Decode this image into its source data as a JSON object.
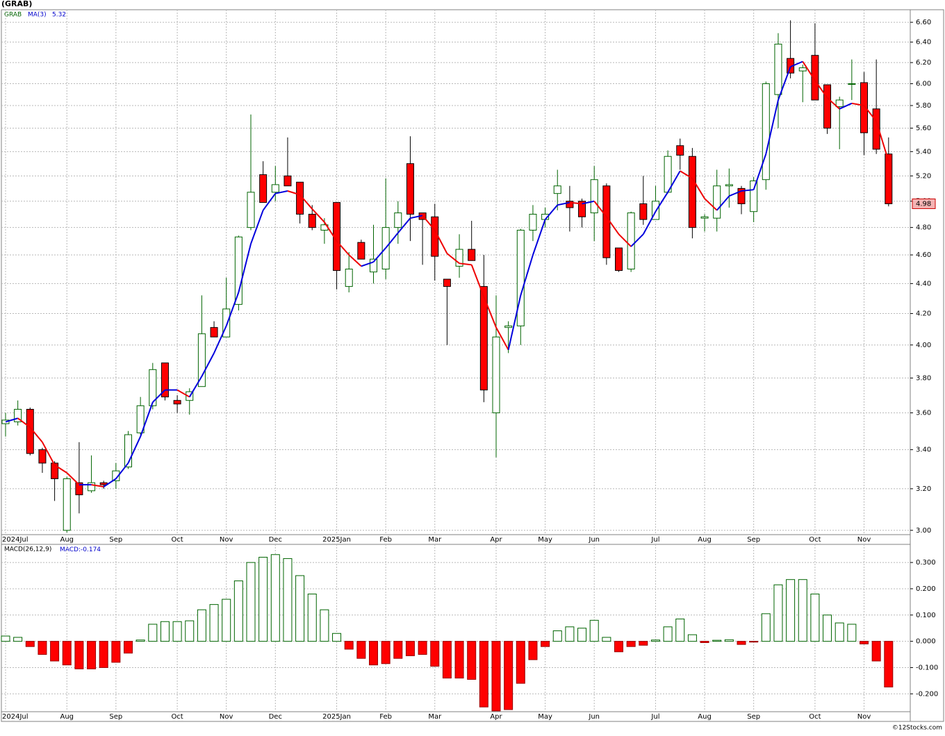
{
  "chart_data": [
    {
      "type": "candlestick",
      "title": "(GRAB)",
      "name": "GRAB",
      "categories": [
        "2024Jul",
        null,
        null,
        null,
        null,
        "Aug",
        null,
        null,
        null,
        "Sep",
        null,
        null,
        null,
        null,
        "Oct",
        null,
        null,
        null,
        "Nov",
        null,
        null,
        null,
        "Dec",
        null,
        null,
        null,
        null,
        "2025Jan",
        null,
        null,
        null,
        "Feb",
        null,
        null,
        null,
        "Mar",
        null,
        null,
        null,
        null,
        "Apr",
        null,
        null,
        null,
        "May",
        null,
        null,
        null,
        "Jun",
        null,
        null,
        null,
        null,
        "Jul",
        null,
        null,
        null,
        "Aug",
        null,
        null,
        null,
        "Sep",
        null,
        null,
        null,
        null,
        "Oct",
        null,
        null,
        null,
        "Nov",
        null,
        null
      ],
      "open": [
        3.54,
        3.55,
        3.62,
        3.4,
        3.33,
        3.0,
        3.23,
        3.19,
        3.23,
        3.24,
        3.31,
        3.49,
        3.64,
        3.89,
        3.67,
        3.67,
        3.75,
        4.11,
        4.05,
        4.26,
        4.8,
        5.21,
        5.07,
        5.2,
        5.15,
        4.9,
        4.78,
        4.99,
        4.38,
        4.69,
        4.48,
        4.5,
        4.8,
        5.3,
        4.91,
        4.88,
        4.43,
        4.52,
        4.64,
        4.38,
        3.6,
        4.11,
        4.12,
        4.78,
        4.86,
        5.06,
        5.0,
        5.0,
        4.91,
        5.12,
        4.65,
        4.5,
        4.98,
        4.86,
        5.07,
        5.45,
        5.36,
        4.87,
        4.87,
        5.12,
        5.1,
        4.92,
        5.17,
        5.9,
        6.24,
        6.12,
        6.27,
        5.99,
        5.79,
        6.0,
        6.01,
        5.77,
        5.38
      ],
      "high": [
        3.6,
        3.67,
        3.63,
        3.41,
        3.34,
        3.26,
        3.44,
        3.37,
        3.24,
        3.33,
        3.5,
        3.69,
        3.89,
        3.89,
        3.7,
        3.74,
        4.32,
        4.15,
        4.44,
        4.74,
        5.72,
        5.32,
        5.28,
        5.52,
        5.15,
        4.97,
        4.87,
        4.99,
        4.62,
        4.71,
        4.82,
        5.18,
        5.0,
        5.53,
        4.91,
        4.98,
        4.43,
        4.75,
        4.85,
        4.6,
        4.32,
        4.15,
        4.79,
        4.97,
        4.95,
        5.25,
        5.12,
        5.02,
        5.28,
        5.14,
        4.65,
        4.92,
        5.2,
        5.12,
        5.41,
        5.51,
        5.43,
        4.9,
        5.25,
        5.26,
        5.12,
        5.19,
        6.02,
        6.49,
        6.62,
        6.18,
        6.59,
        5.99,
        5.88,
        6.23,
        6.11,
        6.23,
        5.52
      ],
      "low": [
        3.47,
        3.53,
        3.37,
        3.28,
        3.14,
        2.99,
        3.08,
        3.18,
        3.2,
        3.2,
        3.3,
        3.48,
        3.62,
        3.67,
        3.6,
        3.59,
        3.75,
        4.05,
        4.05,
        4.22,
        4.78,
        4.99,
        5.0,
        5.12,
        4.83,
        4.78,
        4.68,
        4.36,
        4.34,
        4.57,
        4.4,
        4.43,
        4.68,
        4.7,
        4.53,
        4.42,
        4.0,
        4.44,
        4.56,
        3.66,
        3.36,
        3.95,
        4.0,
        4.7,
        4.8,
        4.93,
        4.77,
        4.8,
        4.7,
        4.53,
        4.48,
        4.48,
        4.82,
        4.86,
        5.06,
        5.25,
        4.72,
        4.77,
        4.77,
        4.95,
        4.9,
        4.84,
        5.09,
        5.6,
        6.05,
        5.83,
        5.85,
        5.55,
        5.42,
        5.85,
        5.37,
        5.38,
        4.96
      ],
      "close": [
        3.56,
        3.62,
        3.38,
        3.33,
        3.25,
        3.25,
        3.17,
        3.23,
        3.22,
        3.29,
        3.48,
        3.64,
        3.85,
        3.69,
        3.65,
        3.72,
        4.07,
        4.05,
        4.23,
        4.73,
        5.07,
        4.99,
        5.13,
        5.12,
        4.9,
        4.8,
        4.82,
        4.49,
        4.5,
        4.57,
        4.57,
        4.8,
        4.91,
        4.9,
        4.86,
        4.59,
        4.38,
        4.64,
        4.56,
        3.73,
        4.05,
        4.12,
        4.78,
        4.9,
        4.9,
        5.12,
        4.95,
        4.88,
        5.17,
        4.58,
        4.49,
        4.91,
        4.86,
        5.0,
        5.36,
        5.37,
        4.8,
        4.88,
        5.12,
        5.13,
        4.98,
        5.16,
        6.0,
        6.38,
        6.1,
        6.15,
        5.85,
        5.6,
        5.85,
        6.0,
        5.56,
        5.42,
        4.98
      ],
      "up_color": "#006400",
      "down_color": "#ff0000",
      "ma": {
        "name": "MA(3)",
        "rise_color": "#0000dd",
        "fall_color": "#ee0000",
        "values": [
          3.55,
          3.57,
          3.52,
          3.44,
          3.32,
          3.28,
          3.22,
          3.22,
          3.21,
          3.25,
          3.33,
          3.47,
          3.66,
          3.73,
          3.73,
          3.69,
          3.81,
          3.95,
          4.12,
          4.34,
          4.68,
          4.93,
          5.06,
          5.08,
          5.05,
          4.94,
          4.84,
          4.7,
          4.6,
          4.52,
          4.55,
          4.65,
          4.76,
          4.87,
          4.89,
          4.78,
          4.61,
          4.54,
          4.53,
          4.31,
          4.11,
          3.97,
          4.32,
          4.6,
          4.86,
          4.97,
          4.99,
          4.98,
          5.0,
          4.88,
          4.75,
          4.66,
          4.75,
          4.92,
          5.07,
          5.24,
          5.18,
          5.02,
          4.93,
          5.04,
          5.08,
          5.09,
          5.38,
          5.85,
          6.16,
          6.21,
          6.03,
          5.87,
          5.77,
          5.82,
          5.8,
          5.66,
          5.32
        ]
      },
      "log_scale": true,
      "grid": true,
      "ylim": [
        2.98,
        6.73
      ],
      "yticks": [
        {
          "value": 3.0,
          "label": "3.00"
        },
        {
          "value": 3.2,
          "label": "3.20"
        },
        {
          "value": 3.4,
          "label": "3.40"
        },
        {
          "value": 3.6,
          "label": "3.60"
        },
        {
          "value": 3.8,
          "label": "3.80"
        },
        {
          "value": 4.0,
          "label": "4.00"
        },
        {
          "value": 4.2,
          "label": "4.20"
        },
        {
          "value": 4.4,
          "label": "4.40"
        },
        {
          "value": 4.6,
          "label": "4.60"
        },
        {
          "value": 4.8,
          "label": "4.80"
        },
        {
          "value": 5.0,
          "label": "5.00"
        },
        {
          "value": 5.2,
          "label": "5.20"
        },
        {
          "value": 5.4,
          "label": "5.40"
        },
        {
          "value": 5.6,
          "label": "5.60"
        },
        {
          "value": 5.8,
          "label": "5.80"
        },
        {
          "value": 6.0,
          "label": "6.00"
        },
        {
          "value": 6.2,
          "label": "6.20"
        },
        {
          "value": 6.4,
          "label": "6.40"
        },
        {
          "value": 6.6,
          "label": "6.60"
        }
      ]
    },
    {
      "type": "bar",
      "name": "MACD(26,12,9)",
      "value_name": "MACD:",
      "categories": [
        "2024Jul",
        null,
        null,
        null,
        null,
        "Aug",
        null,
        null,
        null,
        "Sep",
        null,
        null,
        null,
        null,
        "Oct",
        null,
        null,
        null,
        "Nov",
        null,
        null,
        null,
        "Dec",
        null,
        null,
        null,
        null,
        "2025Jan",
        null,
        null,
        null,
        "Feb",
        null,
        null,
        null,
        "Mar",
        null,
        null,
        null,
        null,
        "Apr",
        null,
        null,
        null,
        "May",
        null,
        null,
        null,
        "Jun",
        null,
        null,
        null,
        null,
        "Jul",
        null,
        null,
        null,
        "Aug",
        null,
        null,
        null,
        "Sep",
        null,
        null,
        null,
        null,
        "Oct",
        null,
        null,
        null,
        "Nov",
        null,
        null
      ],
      "values": [
        0.02,
        0.015,
        -0.02,
        -0.05,
        -0.075,
        -0.09,
        -0.105,
        -0.105,
        -0.1,
        -0.08,
        -0.045,
        0.005,
        0.065,
        0.075,
        0.075,
        0.078,
        0.12,
        0.14,
        0.16,
        0.23,
        0.3,
        0.32,
        0.33,
        0.315,
        0.25,
        0.18,
        0.12,
        0.03,
        -0.03,
        -0.065,
        -0.09,
        -0.085,
        -0.065,
        -0.055,
        -0.05,
        -0.095,
        -0.14,
        -0.14,
        -0.145,
        -0.25,
        -0.265,
        -0.26,
        -0.16,
        -0.07,
        -0.02,
        0.04,
        0.055,
        0.05,
        0.08,
        0.015,
        -0.04,
        -0.02,
        -0.015,
        0.005,
        0.055,
        0.085,
        0.025,
        -0.005,
        0.004,
        0.006,
        -0.012,
        -0.003,
        0.105,
        0.215,
        0.235,
        0.235,
        0.18,
        0.1,
        0.07,
        0.065,
        -0.01,
        -0.075,
        -0.174
      ],
      "up_color": "#006400",
      "down_color": "#ff0000",
      "grid": true,
      "ylim": [
        -0.268,
        0.369
      ],
      "yticks": [
        {
          "value": -0.2,
          "label": "-0.200"
        },
        {
          "value": -0.1,
          "label": "-0.100"
        },
        {
          "value": 0,
          "label": "0.000"
        },
        {
          "value": 0.1,
          "label": "0.100"
        },
        {
          "value": 0.2,
          "label": "0.200"
        },
        {
          "value": 0.3,
          "label": "0.300"
        }
      ]
    }
  ],
  "footer": "©12Stocks.com"
}
